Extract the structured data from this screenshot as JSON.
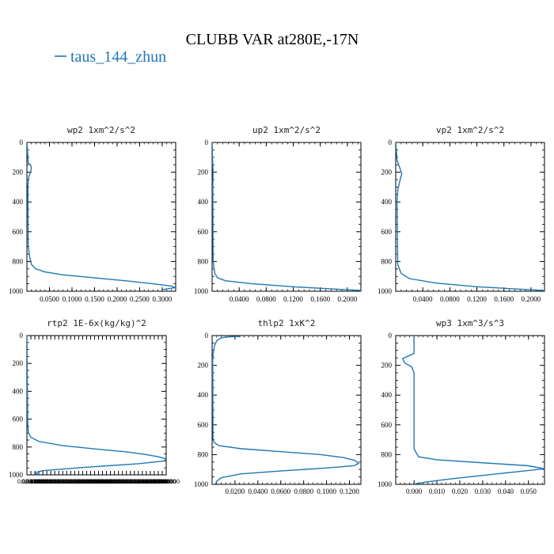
{
  "figure": {
    "title": "CLUBB VAR at280E,-17N",
    "legend_entries": [
      {
        "label": "taus_144_zhun",
        "color": "#1f77b4"
      }
    ]
  },
  "chart_data": [
    {
      "type": "line",
      "title": "wp2  1xm^2/s^2",
      "xlim": [
        0.0,
        0.33
      ],
      "ylim": [
        1000,
        0
      ],
      "y_ticks": [
        0,
        200,
        400,
        600,
        800,
        1000
      ],
      "x_ticks": [
        "0.0500",
        "0.1000",
        "0.1500",
        "0.2000",
        "0.2500",
        "0.3000"
      ],
      "x_tick_values": [
        0.05,
        0.1,
        0.15,
        0.2,
        0.25,
        0.3
      ],
      "series": [
        {
          "color": "#1f77b4",
          "x": [
            0.0,
            0.003,
            0.008,
            0.01,
            0.008,
            0.004,
            0.002,
            0.003,
            0.006,
            0.01,
            0.02,
            0.04,
            0.08,
            0.15,
            0.22,
            0.28,
            0.32,
            0.33,
            0.3
          ],
          "y": [
            0,
            140,
            150,
            170,
            200,
            230,
            300,
            700,
            770,
            820,
            850,
            870,
            890,
            910,
            930,
            950,
            965,
            975,
            990
          ]
        }
      ]
    },
    {
      "type": "line",
      "title": "up2  1xm^2/s^2",
      "xlim": [
        0.0,
        0.22
      ],
      "ylim": [
        1000,
        0
      ],
      "y_ticks": [
        0,
        200,
        400,
        600,
        800,
        1000
      ],
      "x_ticks": [
        "0.0400",
        "0.0800",
        "0.1200",
        "0.1600",
        "0.2000"
      ],
      "x_tick_values": [
        0.04,
        0.08,
        0.12,
        0.16,
        0.2
      ],
      "series": [
        {
          "color": "#1f77b4",
          "x": [
            0.0,
            0.0005,
            0.0015,
            0.001,
            0.0015,
            0.004,
            0.008,
            0.02,
            0.06,
            0.12,
            0.18,
            0.22
          ],
          "y": [
            0,
            100,
            200,
            300,
            800,
            880,
            910,
            930,
            950,
            970,
            985,
            995
          ]
        }
      ]
    },
    {
      "type": "line",
      "title": "vp2  1xm^2/s^2",
      "xlim": [
        0.0,
        0.22
      ],
      "ylim": [
        1000,
        0
      ],
      "y_ticks": [
        0,
        200,
        400,
        600,
        800,
        1000
      ],
      "x_ticks": [
        "0.0400",
        "0.0800",
        "0.1200",
        "0.1600",
        "0.2000"
      ],
      "x_tick_values": [
        0.04,
        0.08,
        0.12,
        0.16,
        0.2
      ],
      "series": [
        {
          "color": "#1f77b4",
          "x": [
            0.0,
            0.002,
            0.006,
            0.009,
            0.006,
            0.003,
            0.002,
            0.003,
            0.008,
            0.02,
            0.06,
            0.12,
            0.18,
            0.22
          ],
          "y": [
            0,
            120,
            170,
            210,
            260,
            320,
            400,
            820,
            880,
            915,
            945,
            970,
            985,
            995
          ]
        }
      ]
    },
    {
      "type": "line",
      "title": "rtp2  1E-6x(kg/kg)^2",
      "xlim": [
        0.0,
        0.7
      ],
      "ylim": [
        1000,
        0
      ],
      "y_ticks": [
        0,
        200,
        400,
        600,
        800,
        1000
      ],
      "x_ticks": [
        "0.0200000",
        "0.0400000",
        "0.0600000",
        "0.0800000",
        "0.1000000",
        "0.1200000",
        "0.1400000",
        "0.1600000",
        "0.1800000",
        "0.2000000",
        "0.2200000",
        "0.2400000",
        "0.2600000",
        "0.2800000",
        "0.3000000",
        "0.3200000",
        "0.3400000",
        "0.3600000",
        "0.3800000",
        "0.4000000",
        "0.4200000",
        "0.4400000",
        "0.4600000",
        "0.4800000",
        "0.5000000",
        "0.5200000",
        "0.5400000",
        "0.5600000",
        "0.5800000",
        "0.6000000",
        "0.6200000",
        "0.6400000",
        "0.6600000",
        "0.6800000",
        "0.7000000"
      ],
      "x_tick_values": [
        0.02,
        0.04,
        0.06,
        0.08,
        0.1,
        0.12,
        0.14,
        0.16,
        0.18,
        0.2,
        0.22,
        0.24,
        0.26,
        0.28,
        0.3,
        0.32,
        0.34,
        0.36,
        0.38,
        0.4,
        0.42,
        0.44,
        0.46,
        0.48,
        0.5,
        0.52,
        0.54,
        0.56,
        0.58,
        0.6,
        0.62,
        0.64,
        0.66,
        0.68,
        0.7
      ],
      "series": [
        {
          "color": "#1f77b4",
          "x": [
            0.0,
            0.004,
            0.008,
            0.02,
            0.06,
            0.18,
            0.35,
            0.5,
            0.6,
            0.66,
            0.7,
            0.69,
            0.56,
            0.3,
            0.08,
            0.04,
            0.05,
            0.065
          ],
          "y": [
            0,
            640,
            700,
            730,
            760,
            790,
            815,
            835,
            855,
            870,
            885,
            900,
            920,
            945,
            970,
            985,
            993,
            998
          ]
        }
      ]
    },
    {
      "type": "line",
      "title": "thlp2  1xK^2",
      "xlim": [
        0.0,
        0.13
      ],
      "ylim": [
        1000,
        0
      ],
      "y_ticks": [
        0,
        200,
        400,
        600,
        800,
        1000
      ],
      "x_ticks": [
        "0.0200",
        "0.0400",
        "0.0600",
        "0.0800",
        "0.1000",
        "0.1200"
      ],
      "x_tick_values": [
        0.02,
        0.04,
        0.06,
        0.08,
        0.1,
        0.12
      ],
      "series": [
        {
          "color": "#1f77b4",
          "x": [
            0.025,
            0.015,
            0.008,
            0.004,
            0.002,
            0.001,
            0.0005,
            0.0008,
            0.002,
            0.006,
            0.025,
            0.06,
            0.095,
            0.115,
            0.125,
            0.128,
            0.124,
            0.1,
            0.06,
            0.025,
            0.008,
            0.004,
            0.003
          ],
          "y": [
            5,
            8,
            15,
            35,
            70,
            120,
            160,
            700,
            720,
            740,
            760,
            780,
            800,
            820,
            840,
            860,
            875,
            890,
            910,
            930,
            955,
            980,
            998
          ]
        }
      ]
    },
    {
      "type": "line",
      "title": "wp3  1xm^3/s^3",
      "xlim": [
        -0.008,
        0.057
      ],
      "ylim": [
        1000,
        0
      ],
      "y_ticks": [
        0,
        200,
        400,
        600,
        800,
        1000
      ],
      "x_ticks": [
        "0.000",
        "0.010",
        "0.020",
        "0.030",
        "0.040",
        "0.050"
      ],
      "x_tick_values": [
        0.0,
        0.01,
        0.02,
        0.03,
        0.04,
        0.05
      ],
      "series": [
        {
          "color": "#1f77b4",
          "x": [
            0.0,
            0.0,
            0.0,
            -0.005,
            -0.004,
            -0.001,
            0.0,
            0.0,
            0.0,
            0.001,
            0.002,
            0.01,
            0.03,
            0.05,
            0.057,
            0.045,
            0.03,
            0.015,
            0.005,
            0.0
          ],
          "y": [
            0,
            60,
            120,
            155,
            185,
            210,
            250,
            500,
            760,
            790,
            815,
            835,
            855,
            875,
            895,
            915,
            940,
            965,
            985,
            998
          ]
        }
      ]
    }
  ]
}
